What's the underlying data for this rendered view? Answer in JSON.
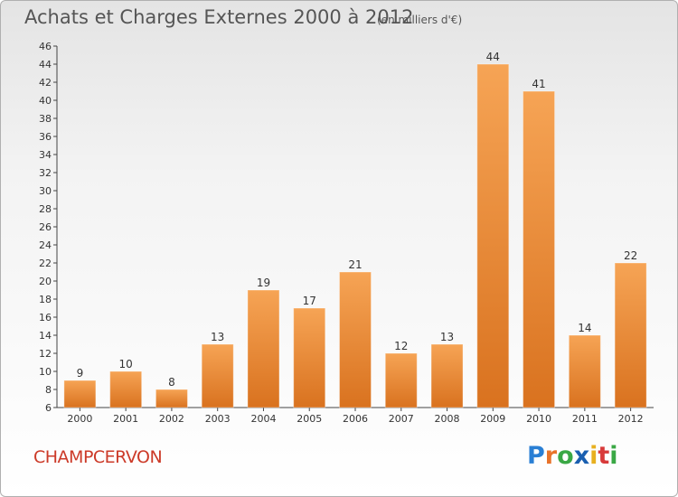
{
  "title": "Achats et Charges Externes 2000 à 2012",
  "unit_note": "(en milliers d'€)",
  "commune": "CHAMPCERVON",
  "logo": {
    "text": "Proxiti",
    "letter_colors": [
      "#2a7fd4",
      "#e8732a",
      "#3aa845",
      "#1a5fb0",
      "#e8b020",
      "#d83a3a",
      "#3aa845"
    ]
  },
  "colors": {
    "bar_top": "#f6a455",
    "bar_bottom": "#d9721f",
    "axis": "#444444",
    "text": "#333333"
  },
  "chart_data": {
    "type": "bar",
    "title": "Achats et Charges Externes 2000 à 2012",
    "xlabel": "",
    "ylabel": "",
    "categories": [
      "2000",
      "2001",
      "2002",
      "2003",
      "2004",
      "2005",
      "2006",
      "2007",
      "2008",
      "2009",
      "2010",
      "2011",
      "2012"
    ],
    "values": [
      9,
      10,
      8,
      13,
      19,
      17,
      21,
      12,
      13,
      44,
      41,
      14,
      22
    ],
    "ylim": [
      6,
      46
    ],
    "yticks": [
      6,
      8,
      10,
      12,
      14,
      16,
      18,
      20,
      22,
      24,
      26,
      28,
      30,
      32,
      34,
      36,
      38,
      40,
      42,
      44,
      46
    ],
    "grid": false,
    "data_labels": true
  }
}
